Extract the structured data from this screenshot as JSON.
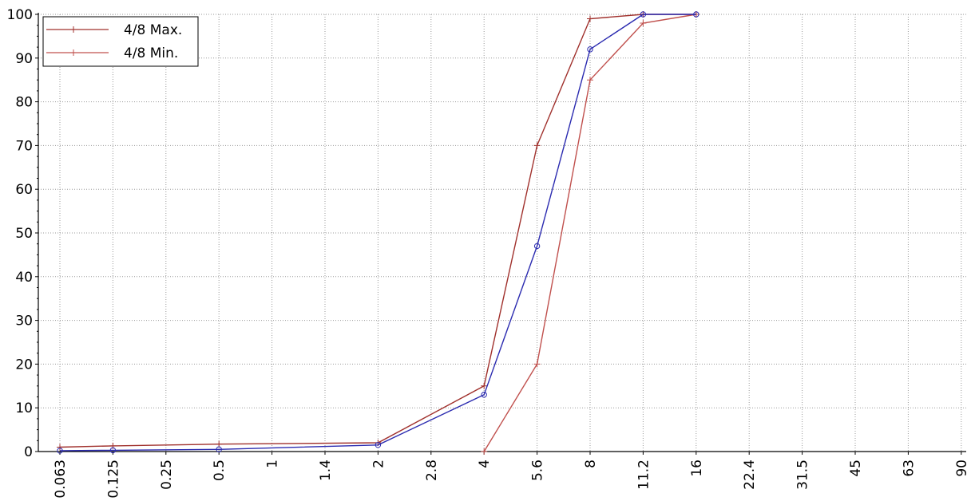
{
  "chart_data": {
    "type": "line",
    "title": "",
    "xlabel": "",
    "ylabel": "",
    "categories": [
      "0.063",
      "0.125",
      "0.25",
      "0.5",
      "1",
      "1.4",
      "2",
      "2.8",
      "4",
      "5.6",
      "8",
      "11.2",
      "16",
      "22.4",
      "31.5",
      "45",
      "63",
      "90"
    ],
    "x_positions": [
      0.063,
      0.125,
      0.25,
      0.5,
      1,
      1.4,
      2,
      2.8,
      4,
      5.6,
      8,
      11.2,
      16,
      22.4,
      31.5,
      45,
      63,
      90
    ],
    "ylim": [
      0,
      100
    ],
    "yticks": [
      0,
      10,
      20,
      30,
      40,
      50,
      60,
      70,
      80,
      90,
      100
    ],
    "grid": true,
    "legend_position": "top-left",
    "series": [
      {
        "name": "4/8 Max.",
        "color": "#a0302c",
        "marker": "plus",
        "in_legend": true,
        "x": [
          0.063,
          0.125,
          0.5,
          2,
          4,
          5.6,
          8,
          11.2,
          16
        ],
        "y": [
          1,
          1.3,
          1.7,
          2,
          15,
          70,
          99,
          100,
          100
        ]
      },
      {
        "name": "4/8 Min.",
        "color": "#c0504d",
        "marker": "plus",
        "in_legend": true,
        "x": [
          4,
          5.6,
          8,
          11.2,
          16
        ],
        "y": [
          0,
          20,
          85,
          98,
          100
        ]
      },
      {
        "name": "",
        "color": "#2b2bb0",
        "marker": "circle",
        "in_legend": false,
        "x": [
          0.063,
          0.125,
          0.5,
          2,
          4,
          5.6,
          8,
          11.2,
          16
        ],
        "y": [
          0.2,
          0.3,
          0.5,
          1.5,
          13,
          47,
          92,
          100,
          100
        ]
      }
    ]
  }
}
